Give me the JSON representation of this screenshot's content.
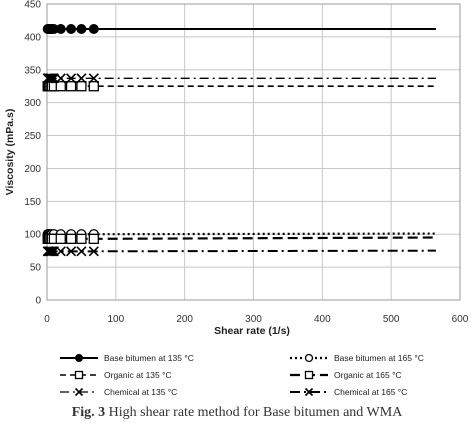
{
  "caption": {
    "label": "Fig. 3",
    "text": " High shear rate method for Base bitumen and WMA"
  },
  "chart_data": {
    "type": "line",
    "xlabel": "Shear rate (1/s)",
    "ylabel": "Viscosity (mPa.s)",
    "xlim": [
      0,
      600
    ],
    "ylim": [
      0,
      450
    ],
    "xticks": [
      0,
      100,
      200,
      300,
      400,
      500,
      600
    ],
    "yticks": [
      0,
      50,
      100,
      150,
      200,
      250,
      300,
      350,
      400,
      450
    ],
    "grid": true,
    "legend_position": "bottom",
    "series": [
      {
        "name": "Base bitumen at 135 °C",
        "dash": "solid",
        "marker": "circle-filled",
        "color": "#000000",
        "x": [
          1,
          2,
          3,
          5,
          7,
          10,
          20,
          35,
          50,
          68,
          565
        ],
        "y": [
          412,
          412,
          412,
          412,
          412,
          412,
          412,
          412,
          412,
          412,
          412
        ]
      },
      {
        "name": "Base bitumen at 165 °C",
        "dash": "dotted",
        "marker": "circle-open",
        "color": "#000000",
        "x": [
          1,
          2,
          3,
          5,
          7,
          10,
          20,
          35,
          50,
          68,
          565
        ],
        "y": [
          100,
          100,
          100,
          100,
          100,
          100,
          100,
          100,
          100,
          100,
          101
        ]
      },
      {
        "name": "Organic at 135 °C",
        "dash": "dashed",
        "marker": "square-open",
        "color": "#000000",
        "x": [
          1,
          2,
          3,
          5,
          7,
          10,
          20,
          35,
          50,
          68,
          565
        ],
        "y": [
          325,
          325,
          325,
          325,
          325,
          325,
          325,
          325,
          325,
          325,
          325
        ]
      },
      {
        "name": "Organic at 165 °C",
        "dash": "long-dash",
        "marker": "square-open",
        "color": "#000000",
        "x": [
          1,
          2,
          3,
          5,
          7,
          10,
          20,
          35,
          50,
          68,
          565
        ],
        "y": [
          93,
          93,
          93,
          93,
          93,
          93,
          93,
          93,
          93,
          93,
          95
        ]
      },
      {
        "name": "Chemical at 135 °C",
        "dash": "dash-dot",
        "marker": "x",
        "color": "#000000",
        "x": [
          1,
          2,
          3,
          5,
          7,
          10,
          20,
          35,
          50,
          68,
          565
        ],
        "y": [
          337,
          337,
          337,
          337,
          337,
          337,
          337,
          337,
          337,
          337,
          337
        ]
      },
      {
        "name": "Chemical at 165 °C",
        "dash": "dash-dot-bold",
        "marker": "x",
        "color": "#000000",
        "x": [
          1,
          2,
          3,
          5,
          7,
          10,
          20,
          35,
          50,
          68,
          565
        ],
        "y": [
          74,
          74,
          74,
          74,
          74,
          74,
          74,
          74,
          74,
          74,
          75
        ]
      }
    ]
  }
}
